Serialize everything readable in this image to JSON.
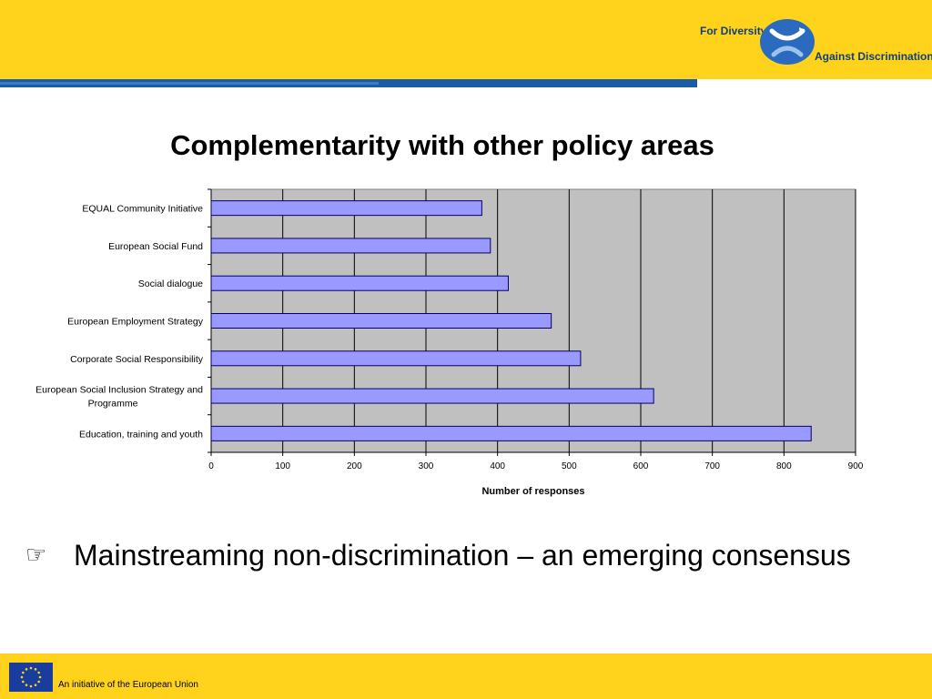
{
  "header": {
    "logo_line1": "For Diversity",
    "logo_line2": "Against Discrimination"
  },
  "slide": {
    "title": "Complementarity with other policy areas",
    "bullet_text": "Mainstreaming non-discrimination – an emerging consensus"
  },
  "footer": {
    "text": "An initiative of the European Union"
  },
  "colors": {
    "band_yellow": "#FFD31C",
    "brand_blue": "#1a5ca8",
    "bar_fill": "#9999ff",
    "plot_bg": "#c0c0c0"
  },
  "chart_data": {
    "type": "bar",
    "orientation": "horizontal",
    "title": "",
    "categories": [
      "EQUAL Community Initiative",
      "European Social Fund",
      "Social dialogue",
      "European Employment Strategy",
      "Corporate Social Responsibility",
      "European Social Inclusion Strategy and Programme",
      "Education, training and youth"
    ],
    "category_lines": [
      [
        "EQUAL Community Initiative"
      ],
      [
        "European Social Fund"
      ],
      [
        "Social dialogue"
      ],
      [
        "European Employment Strategy"
      ],
      [
        "Corporate Social Responsibility"
      ],
      [
        "European Social Inclusion Strategy and",
        "Programme"
      ],
      [
        "Education, training and youth"
      ]
    ],
    "values": [
      378,
      390,
      415,
      475,
      516,
      618,
      838
    ],
    "xlabel": "Number of responses",
    "ylabel": "",
    "xlim": [
      0,
      900
    ],
    "xticks": [
      0,
      100,
      200,
      300,
      400,
      500,
      600,
      700,
      800,
      900
    ],
    "grid": true,
    "legend": false
  }
}
